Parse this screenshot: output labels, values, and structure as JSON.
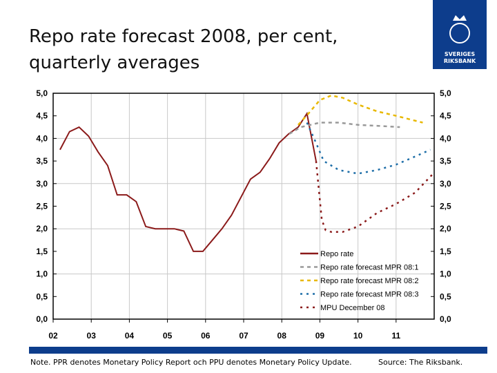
{
  "title": "Repo rate forecast 2008, per cent,\nquarterly averages",
  "logo": {
    "line1": "SVERIGES",
    "line2": "RIKSBANK"
  },
  "note": "Note. PPR denotes Monetary Policy Report och PPU denotes Monetary Policy Update.",
  "source": "Source: The Riksbank.",
  "colors": {
    "brand": "#0d3d8c"
  },
  "chart_data": {
    "type": "line",
    "ylim": [
      0,
      5
    ],
    "xlim": [
      2002,
      2012
    ],
    "yticks": [
      "0,0",
      "0,5",
      "1,0",
      "1,5",
      "2,0",
      "2,5",
      "3,0",
      "3,5",
      "4,0",
      "4,5",
      "5,0"
    ],
    "xticks": [
      "02",
      "03",
      "04",
      "05",
      "06",
      "07",
      "08",
      "09",
      "10",
      "11"
    ],
    "grid": "horizontal at integers, vertical at years",
    "legend_placement": "bottom-right",
    "series": [
      {
        "name": "Repo rate",
        "color": "#8b1a1a",
        "style": "solid",
        "x": [
          2002.18,
          2002.43,
          2002.68,
          2002.93,
          2003.18,
          2003.43,
          2003.68,
          2003.93,
          2004.18,
          2004.43,
          2004.68,
          2004.93,
          2005.18,
          2005.43,
          2005.68,
          2005.93,
          2006.18,
          2006.43,
          2006.68,
          2006.93,
          2007.18,
          2007.43,
          2007.68,
          2007.93,
          2008.18,
          2008.43,
          2008.66,
          2008.9
        ],
        "y": [
          3.75,
          4.15,
          4.25,
          4.05,
          3.7,
          3.4,
          2.75,
          2.75,
          2.6,
          2.05,
          2.0,
          2.0,
          2.0,
          1.95,
          1.5,
          1.5,
          1.75,
          2.0,
          2.3,
          2.7,
          3.1,
          3.25,
          3.55,
          3.9,
          4.1,
          4.25,
          4.55,
          3.5
        ]
      },
      {
        "name": "Repo rate forecast MPR 08:1",
        "color": "#999999",
        "style": "dashed",
        "x": [
          2008.2,
          2008.5,
          2009,
          2009.5,
          2010,
          2010.5,
          2011.1
        ],
        "y": [
          4.1,
          4.25,
          4.35,
          4.35,
          4.3,
          4.28,
          4.25
        ]
      },
      {
        "name": "Repo rate forecast MPR 08:2",
        "color": "#e8b800",
        "style": "dashed",
        "x": [
          2008.43,
          2008.7,
          2009,
          2009.3,
          2009.6,
          2010,
          2010.5,
          2011,
          2011.7
        ],
        "y": [
          4.3,
          4.55,
          4.85,
          4.95,
          4.9,
          4.75,
          4.6,
          4.5,
          4.35
        ]
      },
      {
        "name": "Repo rate forecast MPR 08:3",
        "color": "#1e6ea8",
        "style": "dotted",
        "x": [
          2008.66,
          2008.9,
          2009.1,
          2009.5,
          2010,
          2010.5,
          2011,
          2011.5,
          2011.9
        ],
        "y": [
          4.35,
          3.9,
          3.5,
          3.3,
          3.22,
          3.3,
          3.42,
          3.6,
          3.75
        ]
      },
      {
        "name": "MPU December 08",
        "color": "#8b1a1a",
        "style": "dotted",
        "x": [
          2008.9,
          2009.05,
          2009.15,
          2009.3,
          2009.6,
          2010,
          2010.5,
          2011,
          2011.5,
          2011.95
        ],
        "y": [
          3.5,
          2.2,
          1.97,
          1.93,
          1.93,
          2.05,
          2.35,
          2.55,
          2.8,
          3.2
        ]
      }
    ]
  }
}
